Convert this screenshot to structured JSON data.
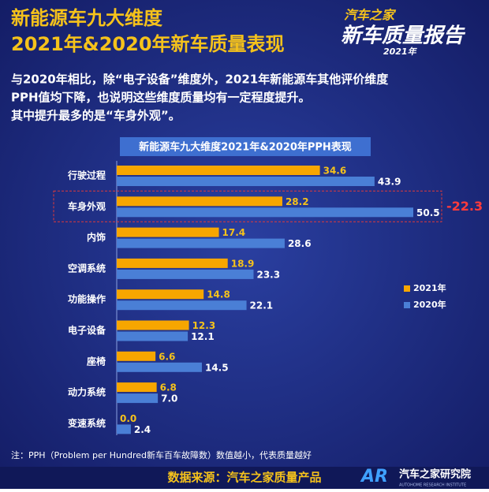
{
  "header": {
    "title": [
      "新能源车九大维度",
      "2021年&2020年新车质量表现"
    ]
  },
  "logo": {
    "brand": "汽车之家",
    "name": "新车质量报告",
    "year": "2021年"
  },
  "description": [
    "与2020年相比，除“电子设备”维度外，2021年新能源车其他评价维度",
    "PPH值均下降，也说明这些维度质量均有一定程度提升。",
    "其中提升最多的是“车身外观”。"
  ],
  "chart_data": {
    "type": "bar",
    "orientation": "horizontal",
    "title": "新能源车九大维度2021年&2020年PPH表现",
    "categories": [
      "行驶过程",
      "车身外观",
      "内饰",
      "空调系统",
      "功能操作",
      "电子设备",
      "座椅",
      "动力系统",
      "变速系统"
    ],
    "series": [
      {
        "name": "2021年",
        "color": "#f7a600",
        "values": [
          34.6,
          28.2,
          17.4,
          18.9,
          14.8,
          12.3,
          6.6,
          6.8,
          0.0
        ],
        "value_labels": [
          "34.6",
          "28.2",
          "17.4",
          "18.9",
          "14.8",
          "12.3",
          "6.6",
          "6.8",
          "0.0"
        ]
      },
      {
        "name": "2020年",
        "color": "#4a7fd6",
        "values": [
          43.9,
          50.5,
          28.6,
          23.3,
          22.1,
          12.1,
          14.5,
          7.0,
          2.4
        ],
        "value_labels": [
          "43.9",
          "50.5",
          "28.6",
          "23.3",
          "22.1",
          "12.1",
          "14.5",
          "7.0",
          "2.4"
        ]
      }
    ],
    "annotation": "-22.3",
    "legend": "right"
  },
  "footnote": "注：PPH（Problem per Hundred新车百车故障数）数值越小，代表质量越好",
  "source": "数据来源：汽车之家质量产品",
  "institute": {
    "mark": "AR",
    "name": "汽车之家研究院",
    "sub": "AUTOHOME RESEARCH INSTITUTE"
  }
}
